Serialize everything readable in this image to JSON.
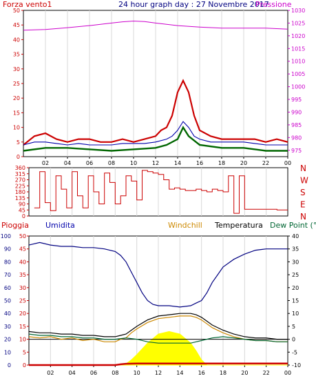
{
  "colors": {
    "red": "#cc0000",
    "magenta": "#cc00cc",
    "blue": "#0000aa",
    "darkblue": "#000080",
    "green": "#006600",
    "orange": "#cc8800",
    "black": "#000000",
    "yellow": "#ffff00",
    "teal": "#006633"
  },
  "chart_data": [
    {
      "type": "line",
      "title": "24 hour graph day : 27 Novembre 2017",
      "left_axis_label": "Forza vento1",
      "right_axis_label": "Pressione",
      "left_ticks": [
        0,
        5,
        10,
        15,
        20,
        25,
        30,
        35,
        40,
        45,
        50
      ],
      "right_ticks": [
        975,
        980,
        985,
        990,
        995,
        1000,
        1005,
        1010,
        1015,
        1020,
        1025,
        1030
      ],
      "ylim_left": [
        0,
        50
      ],
      "ylim_right": [
        972.5,
        1030
      ],
      "x_ticks": [
        "02",
        "04",
        "06",
        "08",
        "10",
        "12",
        "14",
        "16",
        "18",
        "20",
        "22",
        "00"
      ],
      "series": [
        {
          "name": "Pressione",
          "x": [
            0,
            2,
            4,
            6,
            8,
            9,
            10,
            11,
            12,
            14,
            16,
            18,
            20,
            22,
            24
          ],
          "values": [
            1022.2,
            1022.5,
            1023.2,
            1024.0,
            1025.0,
            1025.5,
            1025.8,
            1025.6,
            1025.0,
            1024.0,
            1023.4,
            1023.0,
            1023.0,
            1023.0,
            1022.6
          ]
        },
        {
          "x": [
            0,
            1,
            2,
            3,
            4,
            5,
            6,
            7,
            8,
            9,
            10,
            11,
            12,
            12.5,
            13,
            13.5,
            14,
            14.5,
            15,
            15.5,
            16,
            17,
            18,
            19,
            20,
            21,
            22,
            23,
            24
          ],
          "values": [
            4,
            7,
            8,
            6,
            5,
            6,
            6,
            5,
            5,
            6,
            5,
            6,
            7,
            9,
            10,
            14,
            22,
            26,
            22,
            14,
            9,
            7,
            6,
            6,
            6,
            6,
            5,
            6,
            5
          ]
        },
        {
          "x": [
            0,
            2,
            4,
            6,
            8,
            10,
            12,
            13,
            14,
            14.5,
            15,
            16,
            18,
            20,
            22,
            24
          ],
          "values": [
            2,
            3,
            3,
            2.5,
            2,
            2.5,
            3,
            4,
            6,
            10,
            7,
            4,
            3,
            3,
            2,
            2
          ]
        },
        {
          "x": [
            0,
            1,
            2,
            3,
            4,
            5,
            6,
            7,
            8,
            9,
            10,
            11,
            12,
            13,
            13.5,
            14,
            14.5,
            15,
            15.5,
            16,
            17,
            18,
            19,
            20,
            21,
            22,
            23,
            24
          ],
          "values": [
            4,
            5,
            5,
            4.5,
            4,
            4.5,
            4,
            4,
            4,
            4.5,
            4.5,
            4.5,
            5,
            6,
            7,
            9,
            12,
            10,
            7,
            6,
            5,
            5,
            5,
            5,
            4.5,
            4,
            4,
            4
          ]
        }
      ]
    },
    {
      "type": "line",
      "left_ticks": [
        0,
        45,
        90,
        135,
        180,
        225,
        270,
        315,
        360
      ],
      "right_labels": [
        "N",
        "W",
        "S",
        "E",
        "N"
      ],
      "ylim": [
        0,
        360
      ],
      "x_ticks": [
        "02",
        "04",
        "06",
        "08",
        "10",
        "12",
        "14",
        "16",
        "18",
        "20",
        "22",
        "00"
      ],
      "series": [
        {
          "x": [
            0.5,
            1.0,
            1.5,
            2.0,
            2.5,
            3.0,
            3.5,
            4.0,
            4.5,
            5.0,
            5.5,
            6.0,
            6.5,
            7.0,
            7.5,
            8.0,
            8.5,
            9.0,
            9.5,
            10.0,
            10.5,
            11.0,
            11.5,
            12.0,
            12.5,
            13.0,
            13.5,
            14.0,
            14.5,
            15.0,
            15.5,
            16.0,
            16.5,
            17.0,
            17.5,
            18.0,
            18.5,
            19.0,
            19.5,
            20.0,
            21.0,
            22.0,
            23.0,
            24.0
          ],
          "values": [
            60,
            330,
            100,
            40,
            300,
            200,
            60,
            330,
            150,
            60,
            300,
            180,
            90,
            320,
            250,
            90,
            150,
            300,
            260,
            120,
            340,
            330,
            320,
            310,
            270,
            200,
            210,
            200,
            190,
            190,
            200,
            190,
            180,
            200,
            190,
            180,
            300,
            20,
            300,
            50,
            50,
            50,
            45,
            45
          ]
        }
      ]
    },
    {
      "type": "line",
      "labels": {
        "pioggia": "Pioggia",
        "umidita": "Umidita",
        "windchill": "Windchill",
        "temperatura": "Temperatura",
        "dewpoint": "Dew Point (°C"
      },
      "left_ticks_outer": [
        0,
        10,
        20,
        30,
        40,
        50,
        60,
        70,
        80,
        90,
        100
      ],
      "left_ticks_inner": [
        0,
        5,
        10,
        15,
        20,
        25,
        30,
        35,
        40,
        45,
        50
      ],
      "right_ticks": [
        -10,
        -5,
        0,
        5,
        10,
        15,
        20,
        25,
        30,
        35,
        40
      ],
      "ylim_humidity": [
        0,
        100
      ],
      "ylim_temperature": [
        -10,
        40
      ],
      "x_ticks": [
        "02",
        "04",
        "06",
        "08",
        "10",
        "12",
        "14",
        "16",
        "18",
        "20",
        "22",
        "00"
      ],
      "series": [
        {
          "name": "Umidita",
          "x": [
            0,
            1,
            2,
            3,
            4,
            5,
            6,
            7,
            8,
            8.5,
            9,
            9.5,
            10,
            10.5,
            11,
            11.5,
            12,
            13,
            14,
            15,
            15.5,
            16,
            16.5,
            17,
            17.5,
            18,
            19,
            20,
            21,
            22,
            23,
            24
          ],
          "values": [
            93,
            95,
            93,
            92,
            92,
            91,
            91,
            90,
            88,
            85,
            80,
            72,
            64,
            56,
            50,
            47,
            46,
            46,
            45,
            46,
            48,
            50,
            56,
            64,
            70,
            76,
            82,
            86,
            89,
            90,
            90,
            90
          ]
        },
        {
          "name": "Temperatura",
          "x": [
            0,
            1,
            2,
            3,
            4,
            5,
            6,
            7,
            8,
            8.5,
            9,
            9.5,
            10,
            11,
            12,
            13,
            14,
            15,
            15.5,
            16,
            16.5,
            17,
            18,
            19,
            20,
            21,
            22,
            23,
            24
          ],
          "values": [
            3,
            2.5,
            2.5,
            2,
            2,
            1.5,
            1.5,
            1,
            1,
            1.5,
            2,
            3.5,
            5,
            7.5,
            9,
            9.5,
            10,
            10,
            9.5,
            8.5,
            7,
            5.5,
            3.5,
            2,
            1,
            0.5,
            0.5,
            0,
            0
          ]
        },
        {
          "name": "Windchill",
          "x": [
            0,
            1,
            2,
            3,
            4,
            5,
            6,
            7,
            8,
            8.5,
            9,
            9.5,
            10,
            11,
            12,
            13,
            14,
            15,
            15.5,
            16,
            16.5,
            17,
            18,
            19,
            20,
            21,
            22,
            23,
            24
          ],
          "values": [
            1,
            0.5,
            1,
            0,
            0.5,
            -0.5,
            0,
            -1,
            -1,
            0,
            0.5,
            2.5,
            4,
            6.5,
            8,
            8.5,
            9,
            9,
            8.5,
            7.5,
            6,
            4.5,
            2.5,
            1,
            0,
            -0.5,
            -0.5,
            -1,
            -1
          ]
        },
        {
          "name": "Dew Point",
          "x": [
            0,
            1,
            2,
            3,
            4,
            5,
            6,
            7,
            8,
            9,
            10,
            11,
            12,
            13,
            14,
            15,
            16,
            17,
            18,
            19,
            20,
            21,
            22,
            23,
            24
          ],
          "values": [
            2,
            1.5,
            1.5,
            1,
            1,
            0.5,
            0.5,
            0,
            0,
            0.5,
            0,
            -1,
            -1.5,
            -1.5,
            -1.5,
            -1.5,
            -0.5,
            0.5,
            1,
            0.5,
            0,
            -0.5,
            -0.5,
            -1,
            -1
          ]
        },
        {
          "x": [
            0,
            4,
            8,
            9,
            9.5,
            10,
            11,
            12,
            13,
            14,
            15,
            15.5,
            16,
            16.5,
            24
          ],
          "values": [
            0,
            0,
            0,
            1,
            4,
            8,
            17,
            24,
            26,
            24,
            17,
            11,
            4,
            0,
            0
          ]
        },
        {
          "x": [
            0,
            4,
            8,
            8.5,
            9,
            10,
            12,
            14,
            16,
            18,
            20,
            22,
            24
          ],
          "values": [
            0,
            0,
            0,
            0.3,
            0.5,
            0.6,
            0.6,
            0.6,
            0.6,
            0.6,
            0.6,
            0.6,
            0.6
          ]
        }
      ],
      "reference_line_temperature": 0
    }
  ]
}
